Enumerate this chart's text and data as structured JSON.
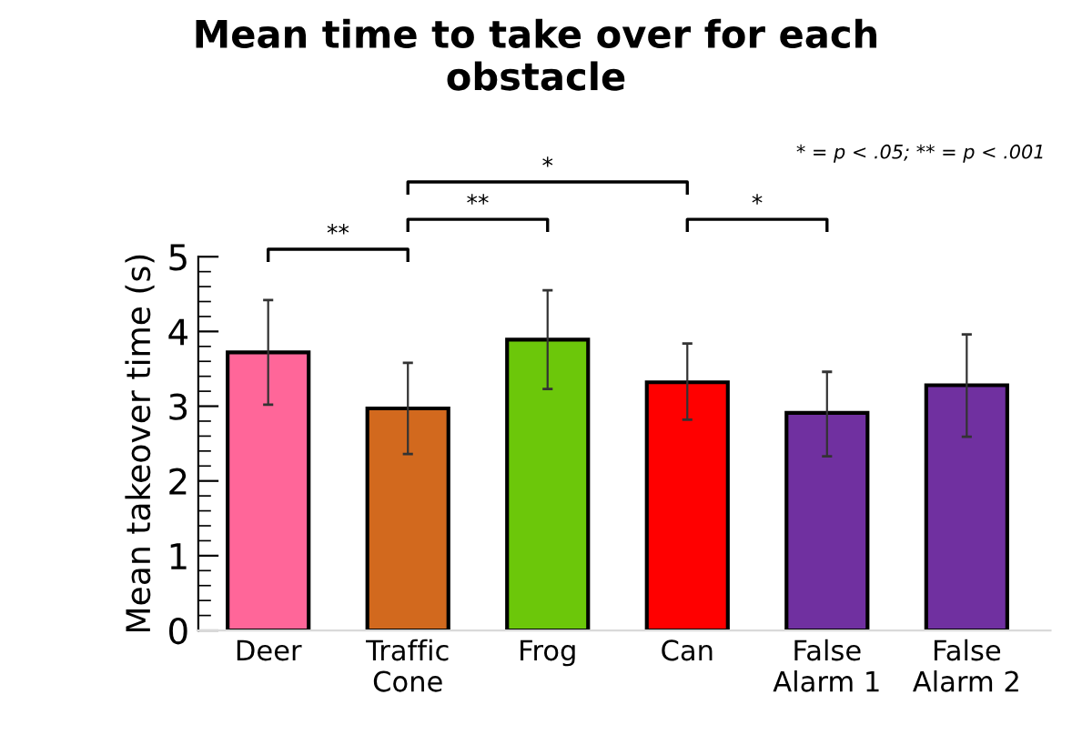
{
  "chart_data": {
    "type": "bar",
    "title": "Mean time to take over for each\nobstacle",
    "ylabel": "Mean takeover time (s)",
    "categories": [
      "Deer",
      "Traffic\nCone",
      "Frog",
      "Can",
      "False\nAlarm 1",
      "False\nAlarm 2"
    ],
    "values": [
      3.72,
      2.97,
      3.89,
      3.32,
      2.91,
      3.28
    ],
    "colors": [
      "#ff6699",
      "#d2691e",
      "#6cc70a",
      "#ff0000",
      "#7030a0",
      "#7030a0"
    ],
    "errors": [
      [
        3.02,
        4.42
      ],
      [
        2.36,
        3.58
      ],
      [
        3.23,
        4.55
      ],
      [
        2.82,
        3.84
      ],
      [
        2.33,
        3.46
      ],
      [
        2.59,
        3.96
      ]
    ],
    "ylim": [
      0,
      5
    ],
    "yticks": [
      0,
      1,
      2,
      3,
      4,
      5
    ],
    "grid": false,
    "annotations": [
      "* = p < .05; ** = p < .001",
      "**",
      "**",
      "*",
      "*"
    ]
  }
}
